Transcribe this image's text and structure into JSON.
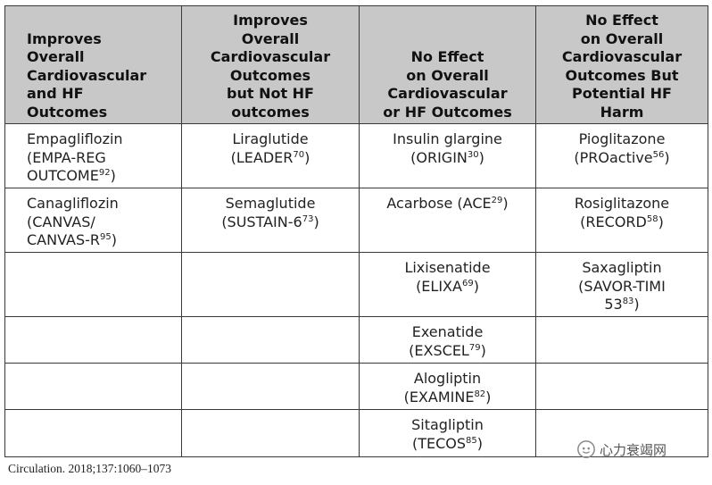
{
  "headers": [
    [
      "Improves",
      "Overall",
      "Cardiovascular",
      "and HF",
      "Outcomes"
    ],
    [
      "Improves",
      "Overall",
      "Cardiovascular",
      "Outcomes",
      "but Not HF",
      "outcomes"
    ],
    [
      "No Effect",
      "on Overall",
      "Cardiovascular",
      "or HF Outcomes"
    ],
    [
      "No Effect",
      "on Overall",
      "Cardiovascular",
      "Outcomes But",
      "Potential HF",
      "Harm"
    ]
  ],
  "rows": [
    [
      {
        "drug": "Empagliflozin",
        "trial": "(EMPA-REG",
        "trial2": "OUTCOME",
        "ref": "92",
        "close": ")"
      },
      {
        "drug": "Liraglutide",
        "trial": "(LEADER",
        "ref": "70",
        "close": ")"
      },
      {
        "drug": "Insulin glargine",
        "trial": "(ORIGIN",
        "ref": "30",
        "close": ")"
      },
      {
        "drug": "Pioglitazone",
        "trial": "(PROactive",
        "ref": "56",
        "close": ")"
      }
    ],
    [
      {
        "drug": "Canagliflozin",
        "trial": "(CANVAS/",
        "trial2": "CANVAS-R",
        "ref": "95",
        "close": ")"
      },
      {
        "drug": "Semaglutide",
        "trial": "(SUSTAIN-6",
        "ref": "73",
        "close": ")"
      },
      {
        "drug": "Acarbose (ACE",
        "ref": "29",
        "close": ")"
      },
      {
        "drug": "Rosiglitazone",
        "trial": "(RECORD",
        "ref": "58",
        "close": ")"
      }
    ],
    [
      null,
      null,
      {
        "drug": "Lixisenatide",
        "trial": "(ELIXA",
        "ref": "69",
        "close": ")"
      },
      {
        "drug": "Saxagliptin",
        "trial": "(SAVOR-TIMI",
        "trial2": "53",
        "ref": "83",
        "close": ")"
      }
    ],
    [
      null,
      null,
      {
        "drug": "Exenatide",
        "trial": "(EXSCEL",
        "ref": "79",
        "close": ")"
      },
      null
    ],
    [
      null,
      null,
      {
        "drug": "Alogliptin",
        "trial": "(EXAMINE",
        "ref": "82",
        "close": ")"
      },
      null
    ],
    [
      null,
      null,
      {
        "drug": "Sitagliptin",
        "trial": "(TECOS",
        "ref": "85",
        "close": ")"
      },
      null
    ]
  ],
  "citation": "Circulation. 2018;137:1060–1073",
  "watermark": "心力衰竭网"
}
